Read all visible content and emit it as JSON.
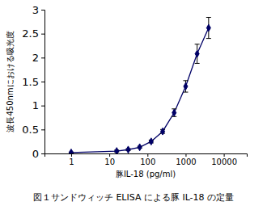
{
  "chart_data": {
    "type": "line",
    "title": "図１サンドウィッチ ELISA による豚 IL-18 の定量",
    "x_label": "豚IL-18 (pg/ml)",
    "y_label": "波長450nmにおける吸光度",
    "x": [
      1,
      15.6,
      31.25,
      62.5,
      125,
      250,
      500,
      1000,
      2000,
      4000
    ],
    "values": [
      0.02,
      0.05,
      0.08,
      0.13,
      0.25,
      0.46,
      0.85,
      1.4,
      2.08,
      2.62
    ],
    "errors": [
      0.01,
      0.02,
      0.02,
      0.02,
      0.03,
      0.04,
      0.08,
      0.12,
      0.2,
      0.22
    ],
    "color": "#000066",
    "marker": "diamond",
    "log": "x",
    "xlim": [
      0.2,
      40000
    ],
    "xticks": [
      1,
      10,
      100,
      1000,
      10000
    ],
    "ylim": [
      0,
      3
    ],
    "yticks": [
      0,
      0.5,
      1,
      1.5,
      2,
      2.5,
      3
    ]
  }
}
